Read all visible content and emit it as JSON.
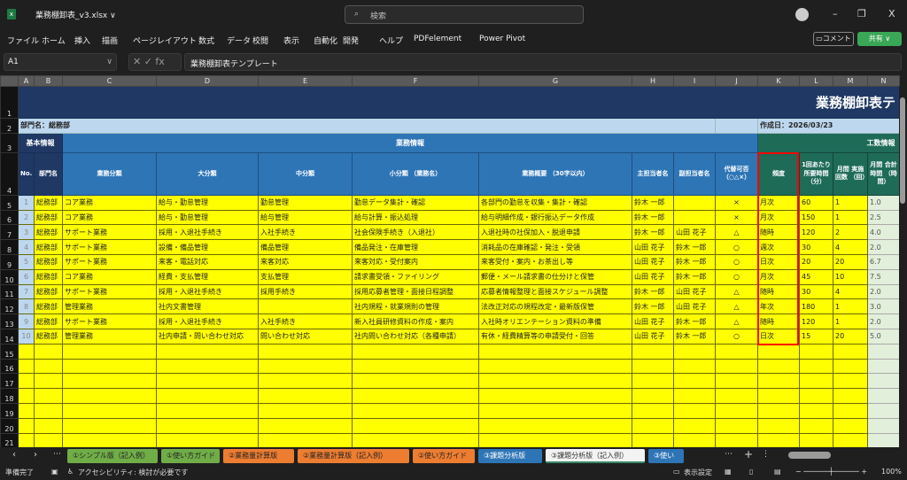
{
  "window": {
    "file_name": "業務棚卸表_v3.xlsx ∨",
    "search_placeholder": "検索",
    "minimize": "–",
    "restore": "❐",
    "close": "X"
  },
  "menu": [
    "ファイル",
    "ホーム",
    "挿入",
    "描画",
    "ページレイアウト",
    "数式",
    "データ",
    "校閲",
    "表示",
    "自動化",
    "開発",
    "ヘルプ",
    "PDFelement",
    "Power Pivot"
  ],
  "comment_label": "コメント",
  "share_label": "共有 ∨",
  "formula_bar": {
    "name_box": "A1",
    "fx": "✕ ✓ fx",
    "formula": "業務棚卸表テンプレート"
  },
  "columns": [
    "A",
    "B",
    "C",
    "D",
    "E",
    "F",
    "G",
    "H",
    "I",
    "J",
    "K",
    "L",
    "M",
    "N"
  ],
  "sheet": {
    "title": "業務棚卸表テ",
    "department": "部門名：総務部",
    "created": "作成日：2026/03/23",
    "group_basic": "基本情報",
    "group_work": "業務情報",
    "group_effort": "工数情報",
    "headers": [
      "No.",
      "部門名",
      "業務分類",
      "大分類",
      "中分類",
      "小分類\n（業務名）",
      "業務概要\n（30字以内）",
      "主担当者名",
      "副担当者名",
      "代替可否\n（○△×）",
      "頻度",
      "1回あたり\n所要時間\n（分）",
      "月間\n実施回数\n（回）",
      "月間\n合計時間\n（時間）"
    ],
    "rows": [
      [
        "1",
        "総務部",
        "コア業務",
        "給与・勤怠管理",
        "勤怠管理",
        "勤怠データ集計・確認",
        "各部門の勤怠を収集・集計・確認",
        "鈴木 一郎",
        "",
        "×",
        "月次",
        "60",
        "1",
        "1.0"
      ],
      [
        "2",
        "総務部",
        "コア業務",
        "給与・勤怠管理",
        "給与管理",
        "給与計算・振込処理",
        "給与明細作成・銀行振込データ作成",
        "鈴木 一郎",
        "",
        "×",
        "月次",
        "150",
        "1",
        "2.5"
      ],
      [
        "3",
        "総務部",
        "サポート業務",
        "採用・入退社手続き",
        "入社手続き",
        "社会保険手続き（入退社）",
        "入退社時の社保加入・脱退申請",
        "鈴木 一郎",
        "山田 花子",
        "△",
        "随時",
        "120",
        "2",
        "4.0"
      ],
      [
        "4",
        "総務部",
        "サポート業務",
        "設備・備品管理",
        "備品管理",
        "備品発注・在庫管理",
        "消耗品の在庫確認・発注・受領",
        "山田 花子",
        "鈴木 一郎",
        "○",
        "週次",
        "30",
        "4",
        "2.0"
      ],
      [
        "5",
        "総務部",
        "サポート業務",
        "来客・電話対応",
        "来客対応",
        "来客対応・受付案内",
        "来客受付・案内・お茶出し等",
        "山田 花子",
        "鈴木 一郎",
        "○",
        "日次",
        "20",
        "20",
        "6.7"
      ],
      [
        "6",
        "総務部",
        "コア業務",
        "経費・支払管理",
        "支払管理",
        "請求書受領・ファイリング",
        "郵便・メール請求書の仕分けと保管",
        "山田 花子",
        "鈴木 一郎",
        "○",
        "月次",
        "45",
        "10",
        "7.5"
      ],
      [
        "7",
        "総務部",
        "サポート業務",
        "採用・入退社手続き",
        "採用手続き",
        "採用応募者管理・面接日程調整",
        "応募者情報整理と面接スケジュール調整",
        "鈴木 一郎",
        "山田 花子",
        "△",
        "随時",
        "30",
        "4",
        "2.0"
      ],
      [
        "8",
        "総務部",
        "管理業務",
        "社内文書管理",
        "",
        "社内規程・就業規則の管理",
        "法改正対応の規程改定・最新版保管",
        "鈴木 一郎",
        "山田 花子",
        "△",
        "年次",
        "180",
        "1",
        "3.0"
      ],
      [
        "9",
        "総務部",
        "サポート業務",
        "採用・入退社手続き",
        "入社手続き",
        "新入社員研修資料の作成・案内",
        "入社時オリエンテーション資料の準備",
        "山田 花子",
        "鈴木 一郎",
        "△",
        "随時",
        "120",
        "1",
        "2.0"
      ],
      [
        "10",
        "総務部",
        "管理業務",
        "社内申請・問い合わせ対応",
        "問い合わせ対応",
        "社内問い合わせ対応（各種申請）",
        "有休・経費精算等の申請受付・回答",
        "山田 花子",
        "鈴木 一郎",
        "○",
        "日次",
        "15",
        "20",
        "5.0"
      ]
    ],
    "empty_row_numbers": [
      "15",
      "16",
      "17",
      "18",
      "19",
      "20",
      "21"
    ]
  },
  "tabs": [
    {
      "label": "①シンプル版（記入例）",
      "color": "green"
    },
    {
      "label": "①使い方ガイド",
      "color": "green"
    },
    {
      "label": "②業務量計算版",
      "color": "orange"
    },
    {
      "label": "②業務量計算版（記入例）",
      "color": "orange"
    },
    {
      "label": "②使い方ガイド",
      "color": "orange"
    },
    {
      "label": "③課題分析版",
      "color": "blue"
    },
    {
      "label": "③課題分析版（記入例）",
      "color": "active"
    },
    {
      "label": "③使い",
      "color": "blue"
    }
  ],
  "status": {
    "ready": "準備完了",
    "accessibility": "アクセシビリティ: 検討が必要です",
    "display_settings": "表示設定",
    "zoom": "100%"
  },
  "colors": {
    "title_navy": "#1f3864",
    "header_blue": "#2e75b6",
    "header_green": "#1e6b58",
    "data_yellow": "#ffff00",
    "highlight_red": "#ff0000"
  }
}
